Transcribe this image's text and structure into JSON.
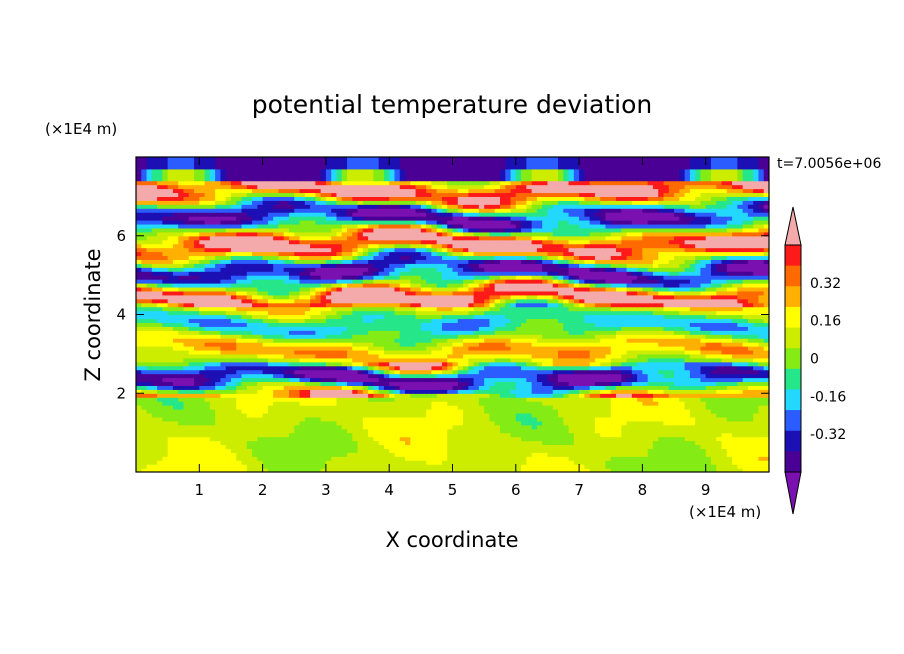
{
  "chart_data": {
    "type": "heatmap",
    "title": "potential temperature deviation",
    "xlabel": "X coordinate",
    "ylabel": "Z coordinate",
    "x_unit": "(×1E4 m)",
    "y_unit": "(×1E4 m)",
    "time_label": "t=7.0056e+06",
    "xlim": [
      0,
      10
    ],
    "ylim": [
      0,
      8
    ],
    "x_ticks": [
      1,
      2,
      3,
      4,
      5,
      6,
      7,
      8,
      9
    ],
    "y_ticks": [
      2,
      4,
      6
    ],
    "colorbar": {
      "levels": [
        -0.48,
        -0.4,
        -0.32,
        -0.24,
        -0.16,
        -0.08,
        0,
        0.08,
        0.16,
        0.24,
        0.32,
        0.4,
        0.48
      ],
      "tick_labels": [
        "0.32",
        "0.16",
        "0",
        "-0.16",
        "-0.32"
      ],
      "tick_values": [
        0.32,
        0.16,
        0,
        -0.16,
        -0.32
      ],
      "colors": [
        "#7a10b0",
        "#4a0094",
        "#1c10b4",
        "#2a5cff",
        "#22d8ff",
        "#26e68a",
        "#84ec14",
        "#ccec00",
        "#ffff00",
        "#ffb000",
        "#ff6a00",
        "#ff1a1a",
        "#f4aaaa"
      ],
      "extend": "both"
    },
    "field_notes": "bands"
  }
}
